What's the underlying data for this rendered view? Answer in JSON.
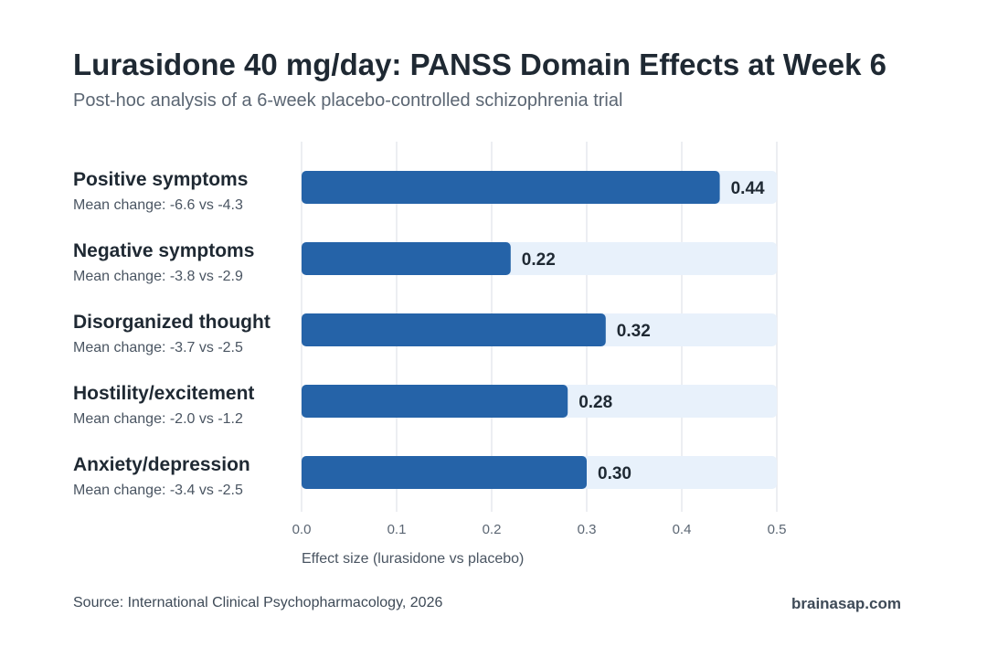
{
  "title": "Lurasidone 40 mg/day: PANSS Domain Effects at Week 6",
  "subtitle": "Post-hoc analysis of a 6-week placebo-controlled schizophrenia trial",
  "footer": {
    "source": "Source: International Clinical Psychopharmacology, 2026",
    "brand": "brainasap.com"
  },
  "colors": {
    "bar": "#2563a8",
    "track": "#e8f1fb",
    "grid": "#e6e9ed",
    "label": "#1f2933",
    "sublabel": "#4a5562",
    "tick": "#5b6673"
  },
  "chart_data": {
    "type": "bar",
    "orientation": "horizontal",
    "categories": [
      "Positive symptoms",
      "Negative symptoms",
      "Disorganized thought",
      "Hostility/excitement",
      "Anxiety/depression"
    ],
    "sublabels": [
      "Mean change: -6.6 vs -4.3",
      "Mean change: -3.8 vs -2.9",
      "Mean change: -3.7 vs -2.5",
      "Mean change: -2.0 vs -1.2",
      "Mean change: -3.4 vs -2.5"
    ],
    "values": [
      0.44,
      0.22,
      0.32,
      0.28,
      0.3
    ],
    "value_labels": [
      "0.44",
      "0.22",
      "0.32",
      "0.28",
      "0.30"
    ],
    "xlabel": "Effect size (lurasidone vs placebo)",
    "xlim": [
      0,
      0.5
    ],
    "xticks": [
      "0.0",
      "0.1",
      "0.2",
      "0.3",
      "0.4",
      "0.5"
    ],
    "grid": true
  }
}
